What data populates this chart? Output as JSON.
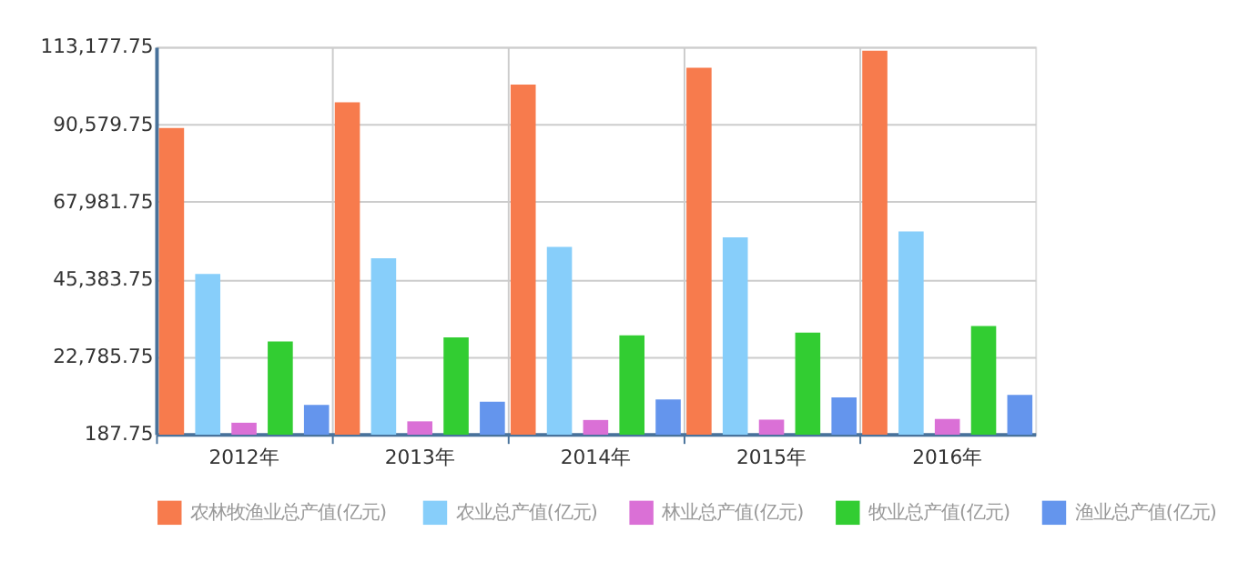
{
  "chart_data": {
    "type": "bar",
    "categories": [
      "2012年",
      "2013年",
      "2014年",
      "2015年",
      "2016年"
    ],
    "series": [
      {
        "name": "农林牧渔业总产值(亿元)",
        "color": "#f77b4d",
        "values": [
          89500,
          97000,
          102200,
          107100,
          112100
        ]
      },
      {
        "name": "农业总产值(亿元)",
        "color": "#87cefa",
        "values": [
          46900,
          51500,
          54800,
          57600,
          59300
        ]
      },
      {
        "name": "林业总产值(亿元)",
        "color": "#da70d6",
        "values": [
          3500,
          3900,
          4300,
          4400,
          4600
        ]
      },
      {
        "name": "牧业总产值(亿元)",
        "color": "#32cd32",
        "values": [
          27200,
          28400,
          29000,
          29800,
          31700
        ]
      },
      {
        "name": "渔业总产值(亿元)",
        "color": "#6495ed",
        "values": [
          8700,
          9600,
          10300,
          10900,
          11600
        ]
      }
    ],
    "ylim": [
      187.75,
      113177.75
    ],
    "yticks": [
      {
        "value": 187.75,
        "label": "187.75"
      },
      {
        "value": 22785.75,
        "label": "22,785.75"
      },
      {
        "value": 45383.75,
        "label": "45,383.75"
      },
      {
        "value": 67981.75,
        "label": "67,981.75"
      },
      {
        "value": 90579.75,
        "label": "90,579.75"
      },
      {
        "value": 113177.75,
        "label": "113,177.75"
      }
    ],
    "grid": true,
    "legend": "bottom"
  }
}
